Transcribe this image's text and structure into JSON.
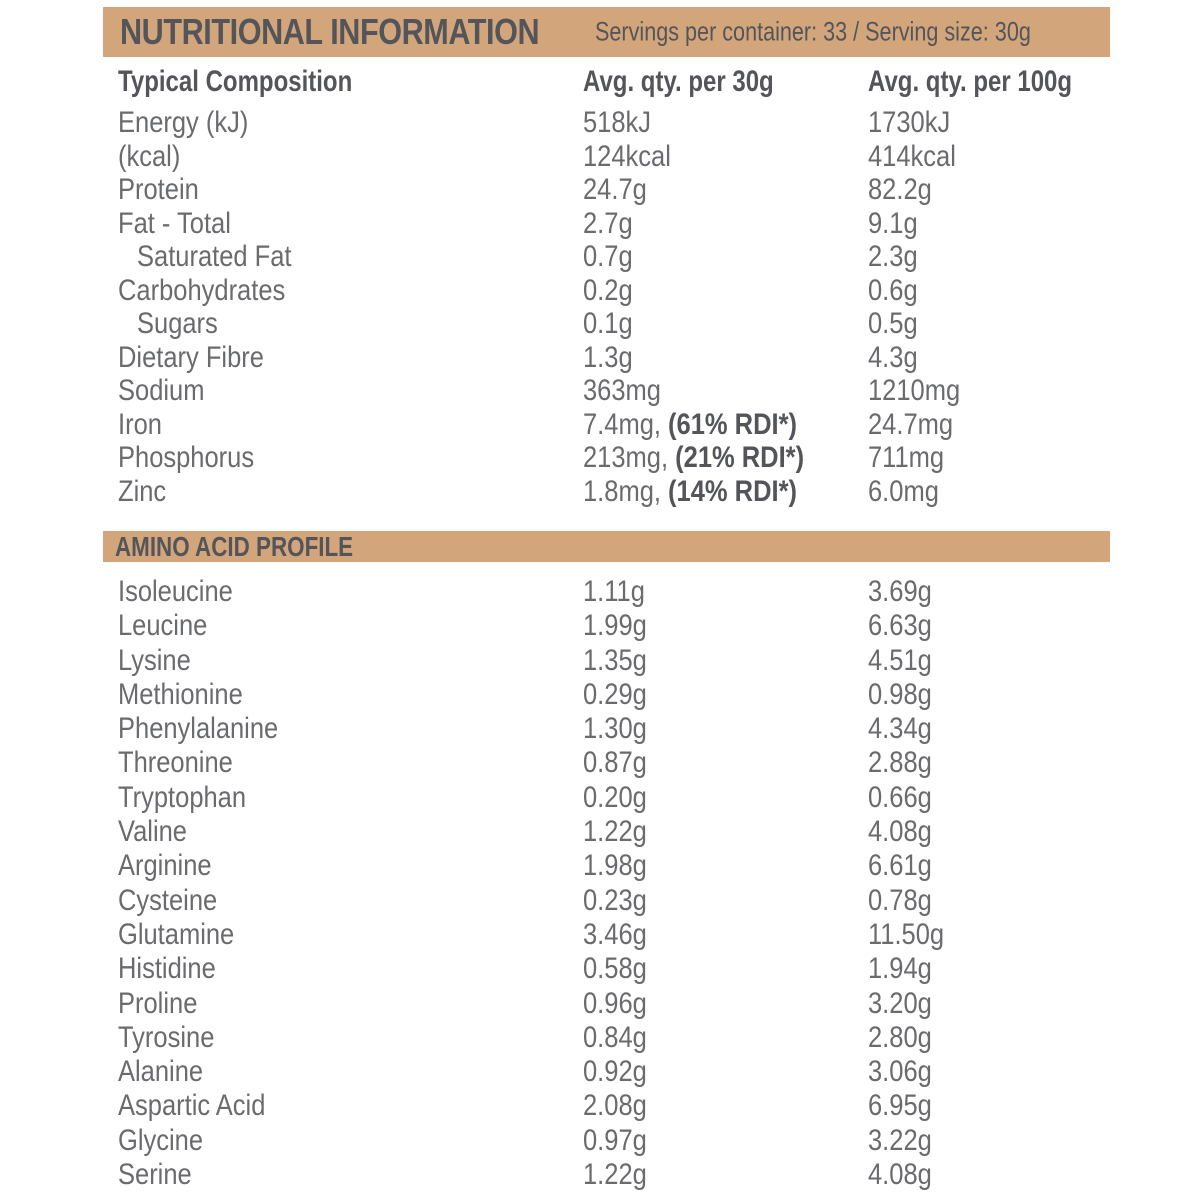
{
  "header": {
    "title": "NUTRITIONAL INFORMATION",
    "servings_info": "Servings per container: 33 / Serving size: 30g"
  },
  "columns": {
    "composition": "Typical Composition",
    "per_30g": "Avg. qty. per 30g",
    "per_100g": "Avg. qty. per 100g"
  },
  "composition_rows": [
    {
      "label": "Energy (kJ)",
      "per30": "518kJ",
      "per30_bold": "",
      "per100": "1730kJ"
    },
    {
      "label": "(kcal)",
      "per30": "124kcal",
      "per30_bold": "",
      "per100": "414kcal"
    },
    {
      "label": "Protein",
      "per30": "24.7g",
      "per30_bold": "",
      "per100": "82.2g"
    },
    {
      "label": "Fat - Total",
      "per30": "2.7g",
      "per30_bold": "",
      "per100": "9.1g"
    },
    {
      "label": "Saturated Fat",
      "per30": "0.7g",
      "per30_bold": "",
      "per100": "2.3g"
    },
    {
      "label": "Carbohydrates",
      "per30": "0.2g",
      "per30_bold": "",
      "per100": "0.6g"
    },
    {
      "label": "Sugars",
      "per30": "0.1g",
      "per30_bold": "",
      "per100": "0.5g"
    },
    {
      "label": "Dietary Fibre",
      "per30": "1.3g",
      "per30_bold": "",
      "per100": "4.3g"
    },
    {
      "label": "Sodium",
      "per30": "363mg",
      "per30_bold": "",
      "per100": "1210mg"
    },
    {
      "label": "Iron",
      "per30": "7.4mg, ",
      "per30_bold": "(61% RDI*)",
      "per100": "24.7mg"
    },
    {
      "label": "Phosphorus",
      "per30": "213mg, ",
      "per30_bold": "(21% RDI*)",
      "per100": "711mg"
    },
    {
      "label": "Zinc",
      "per30": "1.8mg, ",
      "per30_bold": "(14% RDI*)",
      "per100": "6.0mg"
    }
  ],
  "amino": {
    "title": "AMINO ACID PROFILE",
    "rows": [
      {
        "label": "Isoleucine",
        "per30": "1.11g",
        "per100": "3.69g"
      },
      {
        "label": "Leucine",
        "per30": "1.99g",
        "per100": "6.63g"
      },
      {
        "label": "Lysine",
        "per30": "1.35g",
        "per100": "4.51g"
      },
      {
        "label": "Methionine",
        "per30": "0.29g",
        "per100": "0.98g"
      },
      {
        "label": "Phenylalanine",
        "per30": "1.30g",
        "per100": "4.34g"
      },
      {
        "label": "Threonine",
        "per30": "0.87g",
        "per100": "2.88g"
      },
      {
        "label": "Tryptophan",
        "per30": "0.20g",
        "per100": "0.66g"
      },
      {
        "label": "Valine",
        "per30": "1.22g",
        "per100": "4.08g"
      },
      {
        "label": "Arginine",
        "per30": "1.98g",
        "per100": "6.61g"
      },
      {
        "label": "Cysteine",
        "per30": "0.23g",
        "per100": "0.78g"
      },
      {
        "label": "Glutamine",
        "per30": "3.46g",
        "per100": "11.50g"
      },
      {
        "label": "Histidine",
        "per30": "0.58g",
        "per100": "1.94g"
      },
      {
        "label": "Proline",
        "per30": "0.96g",
        "per100": "3.20g"
      },
      {
        "label": "Tyrosine",
        "per30": "0.84g",
        "per100": "2.80g"
      },
      {
        "label": "Alanine",
        "per30": "0.92g",
        "per100": "3.06g"
      },
      {
        "label": "Aspartic Acid",
        "per30": "2.08g",
        "per100": "6.95g"
      },
      {
        "label": "Glycine",
        "per30": "0.97g",
        "per100": "3.22g"
      },
      {
        "label": "Serine",
        "per30": "1.22g",
        "per100": "4.08g"
      }
    ]
  },
  "colors": {
    "bar_tan": "#D2A67A",
    "heading_text": "#54555A",
    "body_text": "#6A6B6E"
  }
}
